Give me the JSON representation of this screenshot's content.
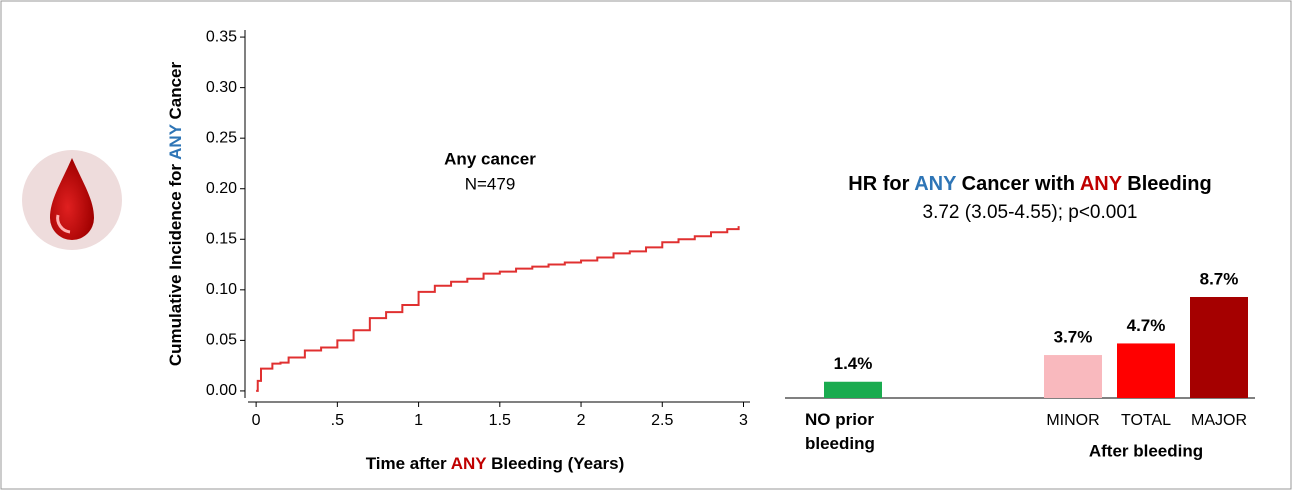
{
  "chart_data": [
    {
      "type": "line",
      "y_label": [
        {
          "text": "Cumulative Incidence for",
          "color": "#000000"
        },
        {
          "text": "ANY",
          "color": "#2e75b6"
        },
        {
          "text": "Cancer",
          "color": "#000000"
        }
      ],
      "x_label": [
        {
          "text": "Time after",
          "color": "#000000"
        },
        {
          "text": "ANY",
          "color": "#c00000"
        },
        {
          "text": "Bleeding (Years)",
          "color": "#000000"
        }
      ],
      "annotations": [
        "Any cancer",
        "N=479"
      ],
      "annotation_color": "#2e75b6",
      "step": true,
      "xlim": [
        -0.05,
        3.04
      ],
      "ylim": [
        -0.007,
        0.357
      ],
      "xticks": [
        0,
        {
          "value": 0.5,
          "label": ".5"
        },
        1,
        1.5,
        2,
        2.5,
        3
      ],
      "yticks": [
        {
          "value": 0,
          "label": "0.00"
        },
        {
          "value": 0.05,
          "label": "0.05"
        },
        {
          "value": 0.1,
          "label": "0.10"
        },
        {
          "value": 0.15,
          "label": "0.15"
        },
        {
          "value": 0.2,
          "label": "0.20"
        },
        {
          "value": 0.25,
          "label": "0.25"
        },
        {
          "value": 0.3,
          "label": "0.30"
        },
        {
          "value": 0.35,
          "label": "0.35"
        }
      ],
      "series": [
        {
          "name": "Any cancer",
          "color": "#e03030",
          "x": [
            0,
            0.01,
            0.03,
            0.1,
            0.15,
            0.2,
            0.3,
            0.4,
            0.5,
            0.6,
            0.7,
            0.8,
            0.9,
            1.0,
            1.1,
            1.2,
            1.3,
            1.4,
            1.5,
            1.6,
            1.7,
            1.8,
            1.9,
            2.0,
            2.1,
            2.2,
            2.3,
            2.4,
            2.5,
            2.6,
            2.7,
            2.8,
            2.9,
            2.97
          ],
          "values": [
            0,
            0.01,
            0.022,
            0.027,
            0.028,
            0.033,
            0.04,
            0.043,
            0.05,
            0.06,
            0.072,
            0.078,
            0.085,
            0.098,
            0.104,
            0.108,
            0.111,
            0.116,
            0.118,
            0.121,
            0.123,
            0.125,
            0.127,
            0.129,
            0.132,
            0.136,
            0.138,
            0.142,
            0.147,
            0.15,
            0.153,
            0.157,
            0.16,
            0.163
          ]
        }
      ]
    },
    {
      "type": "bar",
      "title": [
        {
          "text": "HR for",
          "color": "#000000"
        },
        {
          "text": "ANY",
          "color": "#2e75b6"
        },
        {
          "text": "Cancer with",
          "color": "#000000"
        },
        {
          "text": "ANY",
          "color": "#c00000"
        },
        {
          "text": "Bleeding",
          "color": "#000000"
        }
      ],
      "subtitle": "3.72 (3.05-4.55); p<0.001",
      "categories": [
        "NO prior bleeding",
        "MINOR",
        "TOTAL",
        "MAJOR"
      ],
      "group_label": "After bleeding",
      "values": [
        1.4,
        3.7,
        4.7,
        8.7
      ],
      "value_labels": [
        "1.4%",
        "3.7%",
        "4.7%",
        "8.7%"
      ],
      "colors": [
        "#1aab4f",
        "#f9b9be",
        "#ff0000",
        "#a50000"
      ]
    }
  ]
}
